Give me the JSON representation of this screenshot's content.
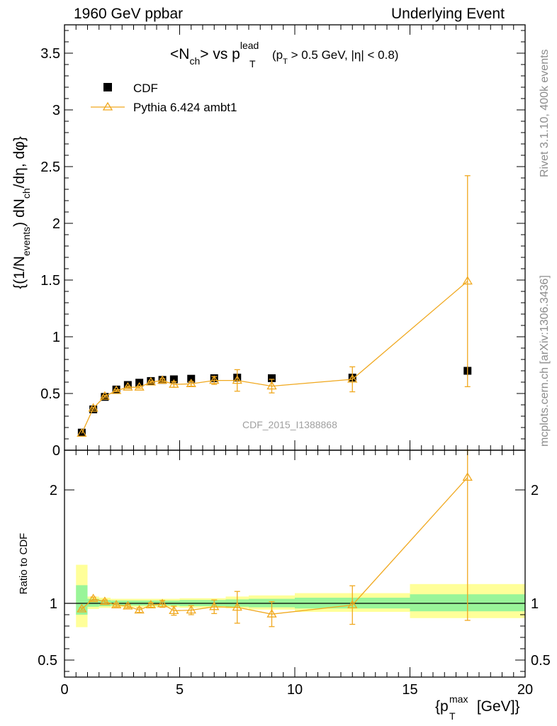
{
  "header": {
    "left": "1960 GeV ppbar",
    "right": "Underlying Event"
  },
  "side": {
    "rivet": "Rivet 3.1.10,  400k events",
    "mcplots": "mcplots.cern.ch [arXiv:1306.3436]"
  },
  "watermark": "CDF_2015_I1388868",
  "colors": {
    "mc": "#f0a81e",
    "band_stat": "#99f599",
    "band_total": "#ffff99",
    "data": "#000000"
  },
  "chart_data": [
    {
      "type": "scatter",
      "title": "<Nch> vs pT^lead (pT > 0.5 GeV, |η| < 0.8)",
      "title_parts": {
        "main": "<N",
        "main_sub": "ch",
        "vs": "> vs p",
        "sup": "lead",
        "sub": "T",
        "cut_open": "(p",
        "cut_sub": "T",
        "cut_rest": " > 0.5 GeV, |η| < 0.8)"
      },
      "ylabel": "{(1/Nevents) dNch/dη, dφ}",
      "ylabel_parts": {
        "a": "{(1/N",
        "a_sub": "events",
        "b": ") dN",
        "b_sub": "ch",
        "c": "/dη, dφ}"
      },
      "xlim": [
        0,
        20
      ],
      "ylim": [
        0,
        3.75
      ],
      "yticks": [
        0,
        0.5,
        1,
        1.5,
        2,
        2.5,
        3,
        3.5
      ],
      "ytick_labels": [
        "0",
        "0.5",
        "1",
        "1.5",
        "2",
        "2.5",
        "3",
        "3.5"
      ],
      "legend_placement": "top-left",
      "series": [
        {
          "name": "CDF",
          "marker": "square",
          "x": [
            0.75,
            1.25,
            1.75,
            2.25,
            2.75,
            3.25,
            3.75,
            4.25,
            4.75,
            5.5,
            6.5,
            7.5,
            9.0,
            12.5,
            17.5
          ],
          "y": [
            0.155,
            0.36,
            0.47,
            0.535,
            0.575,
            0.595,
            0.61,
            0.62,
            0.625,
            0.63,
            0.635,
            0.64,
            0.635,
            0.64,
            0.7
          ],
          "yerr": [
            0.005,
            0.005,
            0.005,
            0.005,
            0.005,
            0.005,
            0.005,
            0.005,
            0.005,
            0.005,
            0.01,
            0.01,
            0.015,
            0.03,
            0.04
          ]
        },
        {
          "name": "Pythia 6.424 ambt1",
          "marker": "triangle",
          "x": [
            0.75,
            1.25,
            1.75,
            2.25,
            2.75,
            3.25,
            3.75,
            4.25,
            4.75,
            5.5,
            6.5,
            7.5,
            9.0,
            12.5,
            17.5
          ],
          "y": [
            0.148,
            0.37,
            0.475,
            0.525,
            0.555,
            0.555,
            0.6,
            0.615,
            0.58,
            0.585,
            0.615,
            0.615,
            0.565,
            0.625,
            1.49
          ],
          "yerr": [
            0.005,
            0.008,
            0.008,
            0.008,
            0.01,
            0.01,
            0.01,
            0.015,
            0.025,
            0.02,
            0.035,
            0.095,
            0.06,
            0.11,
            0.93
          ]
        }
      ]
    },
    {
      "type": "scatter",
      "ylabel": "Ratio to CDF",
      "xlabel": "{pT^max [GeV]}",
      "xlabel_parts": {
        "a": "{p",
        "sub": "T",
        "sup": "max",
        "b": " [GeV]}"
      },
      "xlim": [
        0,
        20
      ],
      "ylim": [
        0.35,
        2.35
      ],
      "xticks": [
        0,
        5,
        10,
        15,
        20
      ],
      "xtick_labels": [
        "0",
        "5",
        "10",
        "15",
        "20"
      ],
      "yticks": [
        0.5,
        1,
        2
      ],
      "ytick_labels": [
        "0.5",
        "1",
        "2"
      ],
      "reference_line": 1,
      "bands": [
        {
          "x0": 0.5,
          "x1": 1.0,
          "stat": [
            0.9,
            1.16
          ],
          "total": [
            0.79,
            1.34
          ]
        },
        {
          "x0": 1.0,
          "x1": 1.5,
          "stat": [
            0.97,
            1.04
          ],
          "total": [
            0.95,
            1.06
          ]
        },
        {
          "x0": 1.5,
          "x1": 2.0,
          "stat": [
            0.975,
            1.03
          ],
          "total": [
            0.96,
            1.05
          ]
        },
        {
          "x0": 2.0,
          "x1": 5.0,
          "stat": [
            0.98,
            1.025
          ],
          "total": [
            0.965,
            1.04
          ]
        },
        {
          "x0": 5.0,
          "x1": 7.0,
          "stat": [
            0.975,
            1.03
          ],
          "total": [
            0.96,
            1.045
          ]
        },
        {
          "x0": 7.0,
          "x1": 8.0,
          "stat": [
            0.97,
            1.035
          ],
          "total": [
            0.955,
            1.06
          ]
        },
        {
          "x0": 8.0,
          "x1": 10.0,
          "stat": [
            0.965,
            1.04
          ],
          "total": [
            0.945,
            1.07
          ]
        },
        {
          "x0": 10.0,
          "x1": 15.0,
          "stat": [
            0.955,
            1.05
          ],
          "total": [
            0.925,
            1.09
          ]
        },
        {
          "x0": 15.0,
          "x1": 20.0,
          "stat": [
            0.93,
            1.08
          ],
          "total": [
            0.87,
            1.17
          ]
        }
      ],
      "series": [
        {
          "name": "Pythia 6.424 ambt1",
          "x": [
            0.75,
            1.25,
            1.75,
            2.25,
            2.75,
            3.25,
            3.75,
            4.25,
            4.75,
            5.5,
            6.5,
            7.5,
            9.0,
            12.5,
            17.5
          ],
          "y": [
            0.95,
            1.04,
            1.015,
            0.985,
            0.975,
            0.94,
            0.985,
            0.995,
            0.935,
            0.94,
            0.97,
            0.965,
            0.905,
            0.985,
            2.11
          ],
          "yerr": [
            0.01,
            0.015,
            0.015,
            0.015,
            0.015,
            0.02,
            0.02,
            0.03,
            0.04,
            0.04,
            0.06,
            0.14,
            0.11,
            0.17,
            1.26
          ]
        }
      ]
    }
  ]
}
